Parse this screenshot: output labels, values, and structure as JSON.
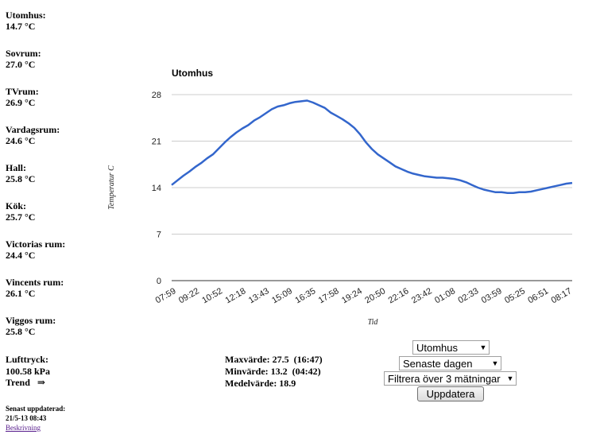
{
  "sensors": [
    {
      "name": "Utomhus:",
      "value": "14.7 °C"
    },
    {
      "name": "Sovrum:",
      "value": "27.0 °C"
    },
    {
      "name": "TVrum:",
      "value": "26.9 °C"
    },
    {
      "name": "Vardagsrum:",
      "value": "24.6 °C"
    },
    {
      "name": "Hall:",
      "value": "25.8 °C"
    },
    {
      "name": "Kök:",
      "value": "25.7 °C"
    },
    {
      "name": "Victorias rum:",
      "value": "24.4 °C"
    },
    {
      "name": "Vincents rum:",
      "value": "26.1 °C"
    },
    {
      "name": "Viggos rum:",
      "value": "25.8 °C"
    }
  ],
  "pressure": {
    "label": "Lufttryck:",
    "value": "100.58 kPa",
    "trend_label": "Trend",
    "trend_symbol": "⇒"
  },
  "updated": {
    "label": "Senast uppdaterad:",
    "timestamp": "21/5-13 08:43",
    "link": "Beskrivning"
  },
  "stats": {
    "max": "Maxvärde: 27.5  (16:47)",
    "min": "Minvärde: 13.2  (04:42)",
    "mean": "Medelvärde: 18.9"
  },
  "controls": {
    "sensor_select": "Utomhus",
    "period_select": "Senaste dagen",
    "filter_select": "Filtrera över 3 mätningar",
    "update_button": "Uppdatera"
  },
  "chart_data": {
    "type": "line",
    "title": "Utomhus",
    "xlabel": "Tid",
    "ylabel": "Temperatur C",
    "ylim": [
      0,
      28
    ],
    "yticks": [
      0,
      7,
      14,
      21,
      28
    ],
    "grid": true,
    "legend": "none",
    "line_color": "#3366cc",
    "x_tick_labels": [
      "07:59",
      "09:22",
      "10:52",
      "12:18",
      "13:43",
      "15:09",
      "16:35",
      "17:58",
      "19:24",
      "20:50",
      "22:16",
      "23:42",
      "01:08",
      "02:33",
      "03:59",
      "05:25",
      "06:51",
      "08:17"
    ],
    "series": [
      {
        "values": [
          14.4,
          15.1,
          15.8,
          16.4,
          17.1,
          17.7,
          18.4,
          19.0,
          19.9,
          20.8,
          21.6,
          22.3,
          22.9,
          23.4,
          24.1,
          24.6,
          25.2,
          25.8,
          26.2,
          26.4,
          26.7,
          26.9,
          27.0,
          27.1,
          26.8,
          26.4,
          26.0,
          25.3,
          24.8,
          24.3,
          23.7,
          23.0,
          22.0,
          20.8,
          19.8,
          19.0,
          18.4,
          17.8,
          17.2,
          16.8,
          16.4,
          16.1,
          15.9,
          15.7,
          15.6,
          15.5,
          15.5,
          15.4,
          15.3,
          15.1,
          14.8,
          14.4,
          14.0,
          13.7,
          13.5,
          13.3,
          13.3,
          13.2,
          13.2,
          13.3,
          13.3,
          13.4,
          13.6,
          13.8,
          14.0,
          14.2,
          14.4,
          14.6,
          14.7
        ]
      }
    ]
  }
}
